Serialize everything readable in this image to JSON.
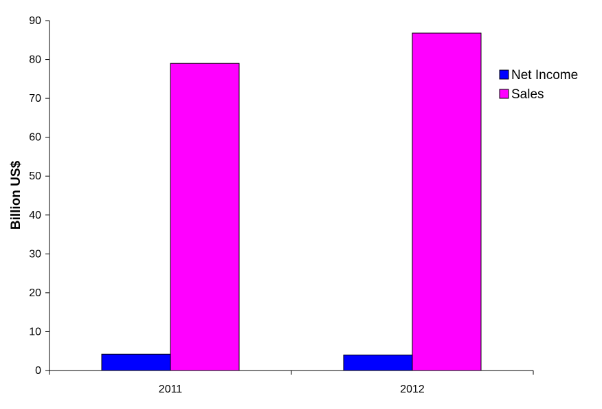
{
  "chart_data": {
    "type": "bar",
    "categories": [
      "2011",
      "2012"
    ],
    "series": [
      {
        "name": "Net Income",
        "values": [
          4.2,
          4.0
        ],
        "color": "#0000ff"
      },
      {
        "name": "Sales",
        "values": [
          79.0,
          86.8
        ],
        "color": "#ff00ff"
      }
    ],
    "xlabel": "",
    "ylabel": "Billion US$",
    "ylim": [
      0,
      90
    ],
    "yticks": [
      "0",
      "10",
      "20",
      "30",
      "40",
      "50",
      "60",
      "70",
      "80",
      "90"
    ],
    "grid": false,
    "legend_position": "right"
  }
}
